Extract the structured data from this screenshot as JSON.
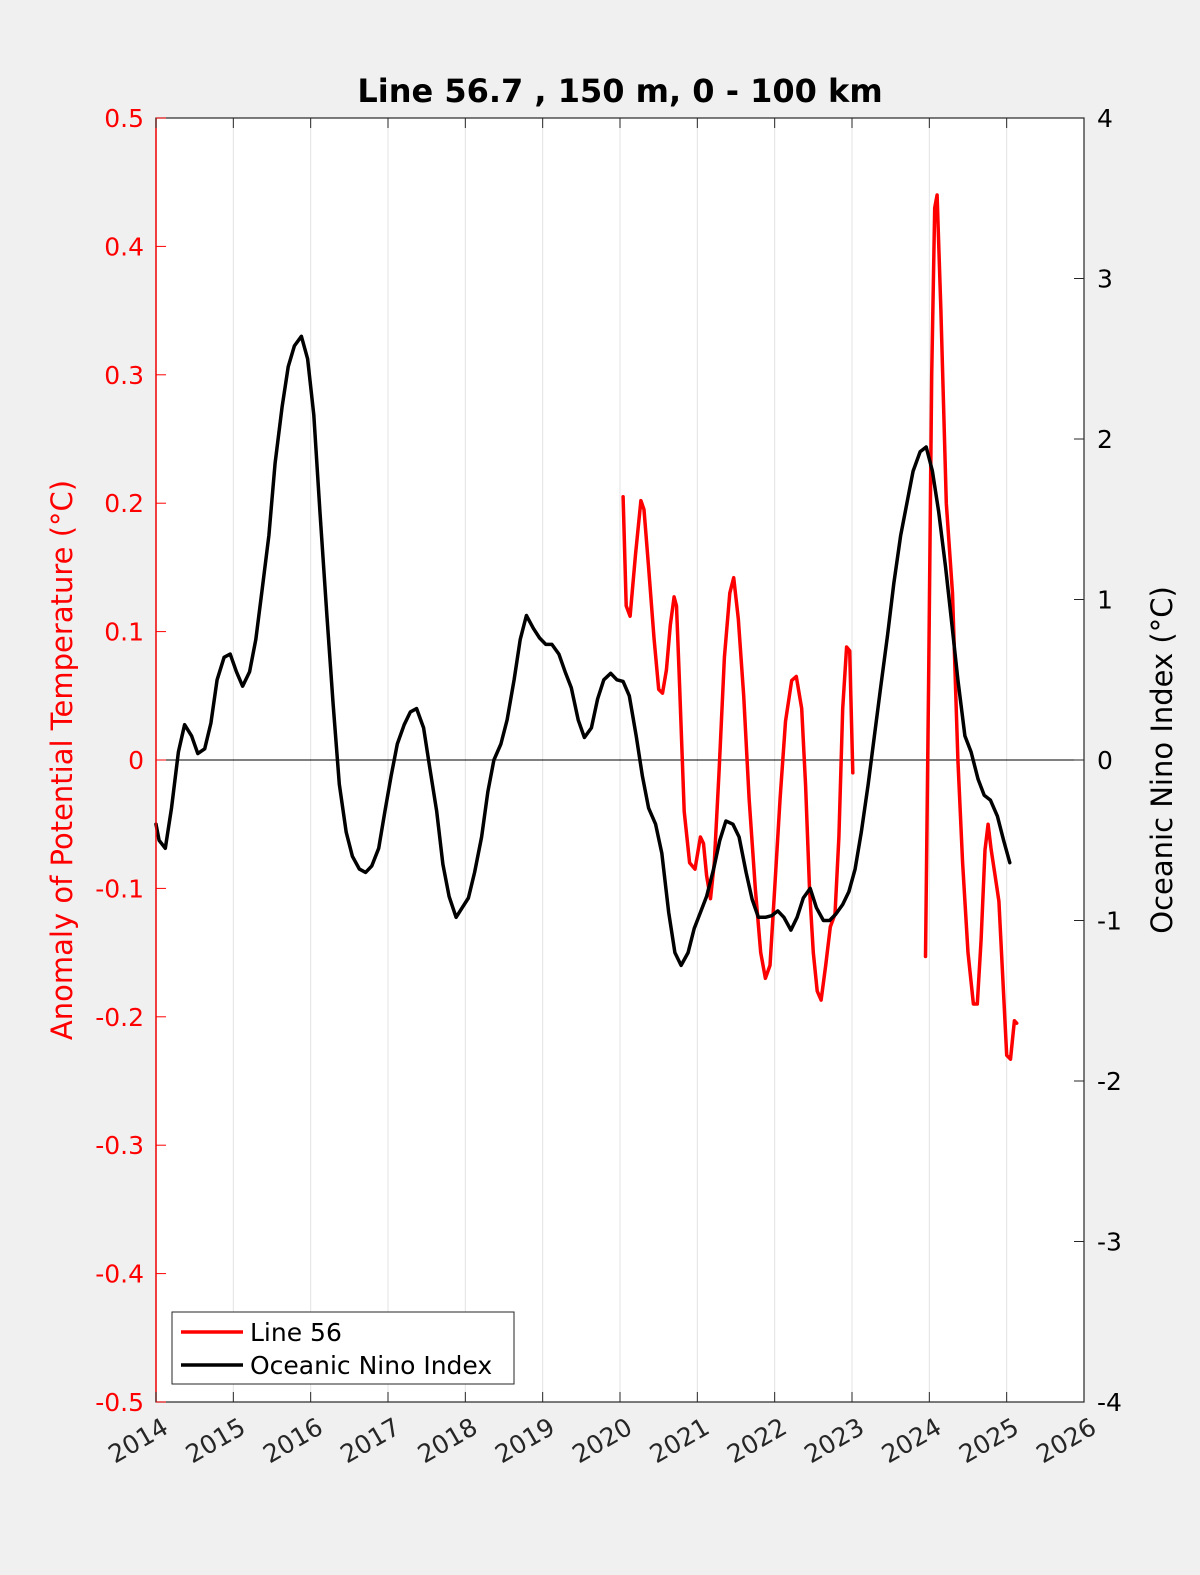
{
  "chart_data": {
    "type": "line",
    "title": "Line 56.7 , 150 m, 0 - 100 km",
    "ylabel_left": "Anomaly of Potential Temperature (°C)",
    "ylabel_right": "Oceanic Nino Index (°C)",
    "xlabel": "",
    "xlim": [
      2014,
      2026
    ],
    "ylim_left": [
      -0.5,
      0.5
    ],
    "ylim_right": [
      -4,
      4
    ],
    "x_ticks": [
      "2014",
      "2015",
      "2016",
      "2017",
      "2018",
      "2019",
      "2020",
      "2021",
      "2022",
      "2023",
      "2024",
      "2025",
      "2026"
    ],
    "y_ticks_left": [
      "0.5",
      "0.4",
      "0.3",
      "0.2",
      "0.1",
      "0",
      "-0.1",
      "-0.2",
      "-0.3",
      "-0.4",
      "-0.5"
    ],
    "y_ticks_right": [
      "4",
      "3",
      "2",
      "1",
      "0",
      "-1",
      "-2",
      "-3",
      "-4"
    ],
    "grid": "vertical lines at x ticks",
    "zero_line": true,
    "legend_position": "bottom-left",
    "colors": {
      "line56": "#ff0000",
      "oni": "#000000",
      "axis_left": "#ff0000",
      "background": "#f0f0f0",
      "plot_bg": "#ffffff"
    },
    "series": [
      {
        "name": "Line 56",
        "axis": "left",
        "segments": [
          [
            [
              2020.04,
              0.205
            ],
            [
              2020.08,
              0.12
            ],
            [
              2020.13,
              0.112
            ],
            [
              2020.2,
              0.16
            ],
            [
              2020.27,
              0.202
            ],
            [
              2020.31,
              0.195
            ],
            [
              2020.37,
              0.15
            ],
            [
              2020.44,
              0.095
            ],
            [
              2020.5,
              0.055
            ],
            [
              2020.55,
              0.052
            ],
            [
              2020.6,
              0.07
            ],
            [
              2020.65,
              0.105
            ],
            [
              2020.7,
              0.127
            ],
            [
              2020.73,
              0.12
            ],
            [
              2020.77,
              0.06
            ],
            [
              2020.83,
              -0.04
            ],
            [
              2020.9,
              -0.08
            ],
            [
              2020.97,
              -0.085
            ],
            [
              2021.04,
              -0.06
            ],
            [
              2021.08,
              -0.065
            ],
            [
              2021.12,
              -0.09
            ],
            [
              2021.17,
              -0.108
            ],
            [
              2021.22,
              -0.08
            ],
            [
              2021.28,
              -0.01
            ],
            [
              2021.35,
              0.08
            ],
            [
              2021.42,
              0.13
            ],
            [
              2021.47,
              0.142
            ],
            [
              2021.53,
              0.11
            ],
            [
              2021.6,
              0.05
            ],
            [
              2021.67,
              -0.03
            ],
            [
              2021.75,
              -0.1
            ],
            [
              2021.82,
              -0.15
            ],
            [
              2021.88,
              -0.17
            ],
            [
              2021.94,
              -0.16
            ],
            [
              2022.0,
              -0.1
            ],
            [
              2022.07,
              -0.03
            ],
            [
              2022.14,
              0.03
            ],
            [
              2022.22,
              0.062
            ],
            [
              2022.28,
              0.065
            ],
            [
              2022.35,
              0.04
            ],
            [
              2022.4,
              -0.02
            ],
            [
              2022.45,
              -0.1
            ],
            [
              2022.5,
              -0.15
            ],
            [
              2022.55,
              -0.18
            ],
            [
              2022.6,
              -0.187
            ],
            [
              2022.66,
              -0.16
            ],
            [
              2022.72,
              -0.13
            ],
            [
              2022.78,
              -0.12
            ],
            [
              2022.83,
              -0.06
            ],
            [
              2022.88,
              0.04
            ],
            [
              2022.93,
              0.088
            ],
            [
              2022.97,
              0.085
            ],
            [
              2023.01,
              -0.01
            ]
          ],
          [
            [
              2023.95,
              -0.153
            ],
            [
              2023.99,
              0.06
            ],
            [
              2024.03,
              0.3
            ],
            [
              2024.07,
              0.43
            ],
            [
              2024.1,
              0.44
            ],
            [
              2024.15,
              0.35
            ],
            [
              2024.22,
              0.2
            ],
            [
              2024.3,
              0.13
            ],
            [
              2024.37,
              0.0
            ],
            [
              2024.43,
              -0.08
            ],
            [
              2024.5,
              -0.15
            ],
            [
              2024.57,
              -0.19
            ],
            [
              2024.62,
              -0.19
            ],
            [
              2024.67,
              -0.14
            ],
            [
              2024.72,
              -0.07
            ],
            [
              2024.76,
              -0.05
            ],
            [
              2024.8,
              -0.07
            ],
            [
              2024.85,
              -0.09
            ],
            [
              2024.9,
              -0.11
            ],
            [
              2024.95,
              -0.17
            ],
            [
              2025.0,
              -0.23
            ],
            [
              2025.05,
              -0.233
            ],
            [
              2025.1,
              -0.203
            ],
            [
              2025.13,
              -0.205
            ]
          ]
        ]
      },
      {
        "name": "Oceanic Nino Index",
        "axis": "right",
        "points": [
          [
            2014.0,
            -0.4
          ],
          [
            2014.04,
            -0.5
          ],
          [
            2014.12,
            -0.55
          ],
          [
            2014.2,
            -0.3
          ],
          [
            2014.29,
            0.05
          ],
          [
            2014.37,
            0.22
          ],
          [
            2014.46,
            0.15
          ],
          [
            2014.54,
            0.04
          ],
          [
            2014.63,
            0.07
          ],
          [
            2014.71,
            0.23
          ],
          [
            2014.79,
            0.5
          ],
          [
            2014.88,
            0.64
          ],
          [
            2014.96,
            0.66
          ],
          [
            2015.04,
            0.55
          ],
          [
            2015.12,
            0.46
          ],
          [
            2015.21,
            0.55
          ],
          [
            2015.29,
            0.75
          ],
          [
            2015.37,
            1.05
          ],
          [
            2015.46,
            1.4
          ],
          [
            2015.54,
            1.85
          ],
          [
            2015.63,
            2.2
          ],
          [
            2015.71,
            2.45
          ],
          [
            2015.79,
            2.58
          ],
          [
            2015.88,
            2.64
          ],
          [
            2015.96,
            2.5
          ],
          [
            2016.04,
            2.15
          ],
          [
            2016.12,
            1.55
          ],
          [
            2016.21,
            0.9
          ],
          [
            2016.29,
            0.35
          ],
          [
            2016.37,
            -0.15
          ],
          [
            2016.46,
            -0.45
          ],
          [
            2016.54,
            -0.6
          ],
          [
            2016.63,
            -0.68
          ],
          [
            2016.71,
            -0.7
          ],
          [
            2016.79,
            -0.66
          ],
          [
            2016.88,
            -0.55
          ],
          [
            2016.96,
            -0.32
          ],
          [
            2017.04,
            -0.1
          ],
          [
            2017.12,
            0.1
          ],
          [
            2017.21,
            0.22
          ],
          [
            2017.29,
            0.3
          ],
          [
            2017.37,
            0.32
          ],
          [
            2017.46,
            0.2
          ],
          [
            2017.54,
            -0.05
          ],
          [
            2017.63,
            -0.32
          ],
          [
            2017.71,
            -0.65
          ],
          [
            2017.79,
            -0.85
          ],
          [
            2017.88,
            -0.98
          ],
          [
            2017.96,
            -0.92
          ],
          [
            2018.04,
            -0.86
          ],
          [
            2018.12,
            -0.7
          ],
          [
            2018.21,
            -0.48
          ],
          [
            2018.29,
            -0.2
          ],
          [
            2018.37,
            0.0
          ],
          [
            2018.46,
            0.1
          ],
          [
            2018.54,
            0.25
          ],
          [
            2018.63,
            0.5
          ],
          [
            2018.71,
            0.75
          ],
          [
            2018.79,
            0.9
          ],
          [
            2018.88,
            0.82
          ],
          [
            2018.96,
            0.76
          ],
          [
            2019.04,
            0.72
          ],
          [
            2019.12,
            0.72
          ],
          [
            2019.21,
            0.66
          ],
          [
            2019.29,
            0.55
          ],
          [
            2019.37,
            0.45
          ],
          [
            2019.46,
            0.25
          ],
          [
            2019.54,
            0.14
          ],
          [
            2019.63,
            0.2
          ],
          [
            2019.71,
            0.38
          ],
          [
            2019.79,
            0.5
          ],
          [
            2019.88,
            0.54
          ],
          [
            2019.96,
            0.5
          ],
          [
            2020.04,
            0.49
          ],
          [
            2020.12,
            0.4
          ],
          [
            2020.21,
            0.15
          ],
          [
            2020.29,
            -0.1
          ],
          [
            2020.37,
            -0.3
          ],
          [
            2020.46,
            -0.4
          ],
          [
            2020.54,
            -0.58
          ],
          [
            2020.63,
            -0.95
          ],
          [
            2020.71,
            -1.2
          ],
          [
            2020.79,
            -1.28
          ],
          [
            2020.88,
            -1.2
          ],
          [
            2020.96,
            -1.05
          ],
          [
            2021.04,
            -0.95
          ],
          [
            2021.12,
            -0.85
          ],
          [
            2021.21,
            -0.68
          ],
          [
            2021.29,
            -0.5
          ],
          [
            2021.37,
            -0.38
          ],
          [
            2021.46,
            -0.4
          ],
          [
            2021.54,
            -0.48
          ],
          [
            2021.63,
            -0.7
          ],
          [
            2021.71,
            -0.87
          ],
          [
            2021.79,
            -0.98
          ],
          [
            2021.88,
            -0.98
          ],
          [
            2021.96,
            -0.97
          ],
          [
            2022.04,
            -0.94
          ],
          [
            2022.12,
            -0.98
          ],
          [
            2022.21,
            -1.06
          ],
          [
            2022.29,
            -0.98
          ],
          [
            2022.37,
            -0.86
          ],
          [
            2022.46,
            -0.8
          ],
          [
            2022.54,
            -0.92
          ],
          [
            2022.63,
            -1.0
          ],
          [
            2022.71,
            -1.0
          ],
          [
            2022.79,
            -0.96
          ],
          [
            2022.88,
            -0.9
          ],
          [
            2022.96,
            -0.82
          ],
          [
            2023.04,
            -0.68
          ],
          [
            2023.12,
            -0.45
          ],
          [
            2023.21,
            -0.15
          ],
          [
            2023.29,
            0.15
          ],
          [
            2023.37,
            0.45
          ],
          [
            2023.46,
            0.78
          ],
          [
            2023.54,
            1.1
          ],
          [
            2023.63,
            1.4
          ],
          [
            2023.71,
            1.6
          ],
          [
            2023.79,
            1.8
          ],
          [
            2023.88,
            1.92
          ],
          [
            2023.96,
            1.95
          ],
          [
            2024.04,
            1.8
          ],
          [
            2024.12,
            1.55
          ],
          [
            2024.21,
            1.2
          ],
          [
            2024.29,
            0.85
          ],
          [
            2024.37,
            0.5
          ],
          [
            2024.46,
            0.15
          ],
          [
            2024.54,
            0.05
          ],
          [
            2024.63,
            -0.12
          ],
          [
            2024.71,
            -0.22
          ],
          [
            2024.79,
            -0.25
          ],
          [
            2024.88,
            -0.35
          ],
          [
            2024.96,
            -0.5
          ],
          [
            2025.04,
            -0.64
          ]
        ]
      }
    ]
  }
}
